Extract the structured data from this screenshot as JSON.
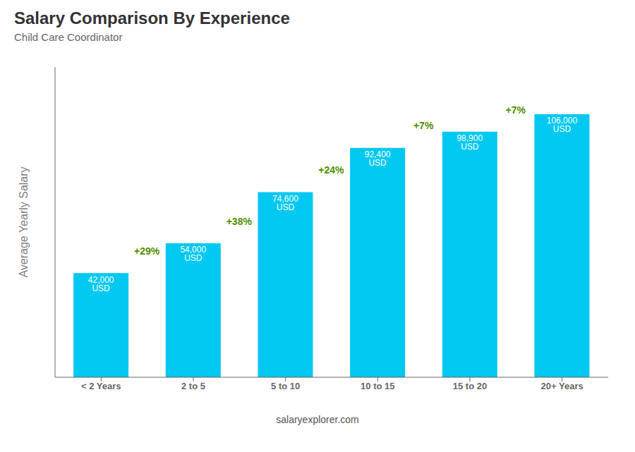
{
  "chart_data": {
    "type": "bar",
    "title": "Salary Comparison By Experience",
    "subtitle": "Child Care Coordinator",
    "ylabel": "Average Yearly Salary",
    "categories": [
      "< 2 Years",
      "2 to 5",
      "5 to 10",
      "10 to 15",
      "15 to 20",
      "20+ Years"
    ],
    "values": [
      42000,
      54000,
      74600,
      92400,
      98900,
      106000
    ],
    "value_labels": [
      "42,000 USD",
      "54,000 USD",
      "74,600 USD",
      "92,400 USD",
      "98,900 USD",
      "106,000 USD"
    ],
    "data_labels": true,
    "color": "#00c8f0",
    "ylim": [
      0,
      125000
    ],
    "tick_labels": "x",
    "annotations": [
      {
        "text": "+29%",
        "between": [
          "< 2 Years",
          "2 to 5"
        ]
      },
      {
        "text": "+38%",
        "between": [
          "2 to 5",
          "5 to 10"
        ]
      },
      {
        "text": "+24%",
        "between": [
          "5 to 10",
          "10 to 15"
        ]
      },
      {
        "text": "+7%",
        "between": [
          "10 to 15",
          "15 to 20"
        ]
      },
      {
        "text": "+7%",
        "between": [
          "15 to 20",
          "20+ Years"
        ]
      },
      {
        "text": "salaryexplorer.com"
      }
    ]
  }
}
